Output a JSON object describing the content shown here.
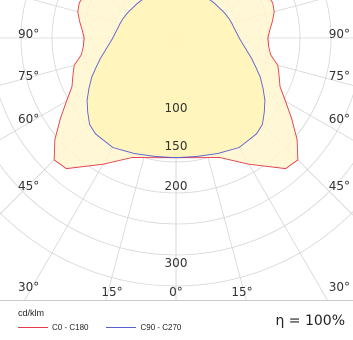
{
  "chart_data": {
    "type": "polar_luminous_intensity",
    "unit": "cd/klm",
    "ring_labels": [
      "100",
      "150",
      "200",
      "300"
    ],
    "angle_labels": {
      "left": [
        "90°",
        "75°",
        "60°",
        "45°",
        "30°"
      ],
      "right": [
        "90°",
        "75°",
        "60°",
        "45°",
        "30°"
      ],
      "bottom": [
        "15°",
        "0°",
        "15°"
      ]
    },
    "efficiency": "η = 100%",
    "series": [
      {
        "name": "C0 - C180",
        "color": "#e63b4a",
        "fill": "#fff6cf",
        "curve": [
          {
            "angle": 0,
            "cd": 193
          },
          {
            "angle": 10,
            "cd": 196
          },
          {
            "angle": 20,
            "cd": 205
          },
          {
            "angle": 30,
            "cd": 235
          },
          {
            "angle": 40,
            "cd": 275
          },
          {
            "angle": 45,
            "cd": 278
          },
          {
            "angle": 50,
            "cd": 255
          },
          {
            "angle": 55,
            "cd": 228
          },
          {
            "angle": 60,
            "cd": 204
          },
          {
            "angle": 65,
            "cd": 185
          },
          {
            "angle": 70,
            "cd": 177
          },
          {
            "angle": 75,
            "cd": 170
          },
          {
            "angle": 80,
            "cd": 155
          },
          {
            "angle": 85,
            "cd": 150
          },
          {
            "angle": 90,
            "cd": 148
          },
          {
            "angle": 95,
            "cd": 152
          },
          {
            "angle": 100,
            "cd": 158
          },
          {
            "angle": 105,
            "cd": 164
          },
          {
            "angle": 110,
            "cd": 166
          },
          {
            "angle": 115,
            "cd": 163
          },
          {
            "angle": 120,
            "cd": 156
          },
          {
            "angle": 125,
            "cd": 146
          },
          {
            "angle": 130,
            "cd": 132
          },
          {
            "angle": 135,
            "cd": 117
          },
          {
            "angle": 140,
            "cd": 104
          },
          {
            "angle": 145,
            "cd": 95
          },
          {
            "angle": 150,
            "cd": 88
          },
          {
            "angle": 155,
            "cd": 84
          },
          {
            "angle": 160,
            "cd": 82
          },
          {
            "angle": 165,
            "cd": 81
          },
          {
            "angle": 170,
            "cd": 80
          },
          {
            "angle": 175,
            "cd": 80
          },
          {
            "angle": 180,
            "cd": 80
          }
        ]
      },
      {
        "name": "C90 - C270",
        "color": "#5a5fd0",
        "fill": "#fff5b8",
        "curve": [
          {
            "angle": 0,
            "cd": 193
          },
          {
            "angle": 10,
            "cd": 194
          },
          {
            "angle": 20,
            "cd": 198
          },
          {
            "angle": 30,
            "cd": 204
          },
          {
            "angle": 40,
            "cd": 202
          },
          {
            "angle": 45,
            "cd": 197
          },
          {
            "angle": 50,
            "cd": 186
          },
          {
            "angle": 55,
            "cd": 175
          },
          {
            "angle": 60,
            "cd": 162
          },
          {
            "angle": 65,
            "cd": 150
          },
          {
            "angle": 70,
            "cd": 137
          },
          {
            "angle": 75,
            "cd": 126
          },
          {
            "angle": 80,
            "cd": 116
          },
          {
            "angle": 85,
            "cd": 108
          },
          {
            "angle": 90,
            "cd": 102
          },
          {
            "angle": 95,
            "cd": 98
          },
          {
            "angle": 100,
            "cd": 95
          },
          {
            "angle": 105,
            "cd": 93
          },
          {
            "angle": 110,
            "cd": 91
          },
          {
            "angle": 115,
            "cd": 89
          },
          {
            "angle": 120,
            "cd": 87
          },
          {
            "angle": 125,
            "cd": 85
          },
          {
            "angle": 130,
            "cd": 84
          },
          {
            "angle": 135,
            "cd": 83
          },
          {
            "angle": 140,
            "cd": 82
          },
          {
            "angle": 145,
            "cd": 81
          },
          {
            "angle": 150,
            "cd": 81
          },
          {
            "angle": 155,
            "cd": 80
          },
          {
            "angle": 160,
            "cd": 80
          },
          {
            "angle": 165,
            "cd": 80
          },
          {
            "angle": 170,
            "cd": 80
          },
          {
            "angle": 175,
            "cd": 80
          },
          {
            "angle": 180,
            "cd": 80
          }
        ]
      }
    ],
    "grid": true
  }
}
